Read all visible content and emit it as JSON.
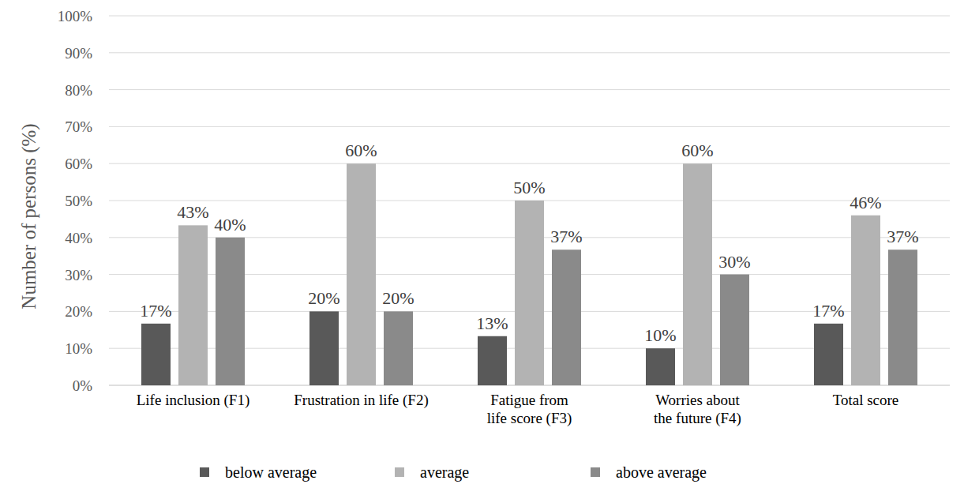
{
  "chart_data": {
    "type": "bar",
    "y_label": "Number of persons (%)",
    "categories": [
      "Life inclusion (F1)",
      "Frustration in life (F2)",
      "Fatigue from\nlife score (F3)",
      "Worries about\nthe future (F4)",
      "Total score"
    ],
    "series": [
      {
        "name": "below average",
        "color": "#595959",
        "values": [
          16.7,
          20,
          13.3,
          10,
          16.7
        ],
        "value_labels": [
          "17%",
          "20%",
          "13%",
          "10%",
          "17%"
        ]
      },
      {
        "name": "average",
        "color": "#b3b3b3",
        "values": [
          43.3,
          60,
          50,
          60,
          46
        ],
        "value_labels": [
          "43%",
          "60%",
          "50%",
          "60%",
          "46%"
        ]
      },
      {
        "name": "above average",
        "color": "#8a8a8a",
        "values": [
          40,
          20,
          36.7,
          30,
          36.7
        ],
        "value_labels": [
          "40%",
          "20%",
          "37%",
          "30%",
          "37%"
        ]
      }
    ],
    "ylim": [
      0,
      100
    ],
    "yticks": [
      {
        "value": 0,
        "label": "0%"
      },
      {
        "value": 10,
        "label": "10%"
      },
      {
        "value": 20,
        "label": "20%"
      },
      {
        "value": 30,
        "label": "30%"
      },
      {
        "value": 40,
        "label": "40%"
      },
      {
        "value": 50,
        "label": "50%"
      },
      {
        "value": 60,
        "label": "60%"
      },
      {
        "value": 70,
        "label": "70%"
      },
      {
        "value": 80,
        "label": "80%"
      },
      {
        "value": 90,
        "label": "90%"
      },
      {
        "value": 100,
        "label": "100%"
      }
    ],
    "grid": true,
    "legend": "bottom",
    "data_labels": true
  }
}
